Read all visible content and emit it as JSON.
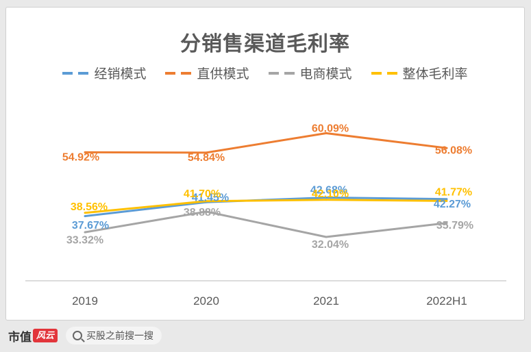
{
  "chart_data": {
    "type": "line",
    "title": "分销售渠道毛利率",
    "categories": [
      "2019",
      "2020",
      "2021",
      "2022H1"
    ],
    "ylim": [
      20,
      70
    ],
    "grid": false,
    "legend_position": "top",
    "series": [
      {
        "name": "经销模式",
        "color": "#5b9bd5",
        "values": [
          37.67,
          41.45,
          42.68,
          42.27
        ],
        "labels": [
          "37.67%",
          "41.45%",
          "42.68%",
          "42.27%"
        ]
      },
      {
        "name": "直供模式",
        "color": "#ed7d31",
        "values": [
          54.92,
          54.84,
          60.09,
          56.08
        ],
        "labels": [
          "54.92%",
          "54.84%",
          "60.09%",
          "56.08%"
        ]
      },
      {
        "name": "电商模式",
        "color": "#a5a5a5",
        "values": [
          33.32,
          38.88,
          32.04,
          35.79
        ],
        "labels": [
          "33.32%",
          "38.88%",
          "32.04%",
          "35.79%"
        ]
      },
      {
        "name": "整体毛利率",
        "color": "#ffc000",
        "values": [
          38.56,
          41.7,
          42.1,
          41.77
        ],
        "labels": [
          "38.56%",
          "41.70%",
          "42.10%",
          "41.77%"
        ]
      }
    ]
  },
  "footer": {
    "brand_text": "市值",
    "brand_mark": "风云",
    "search_text": "买股之前搜一搜"
  }
}
